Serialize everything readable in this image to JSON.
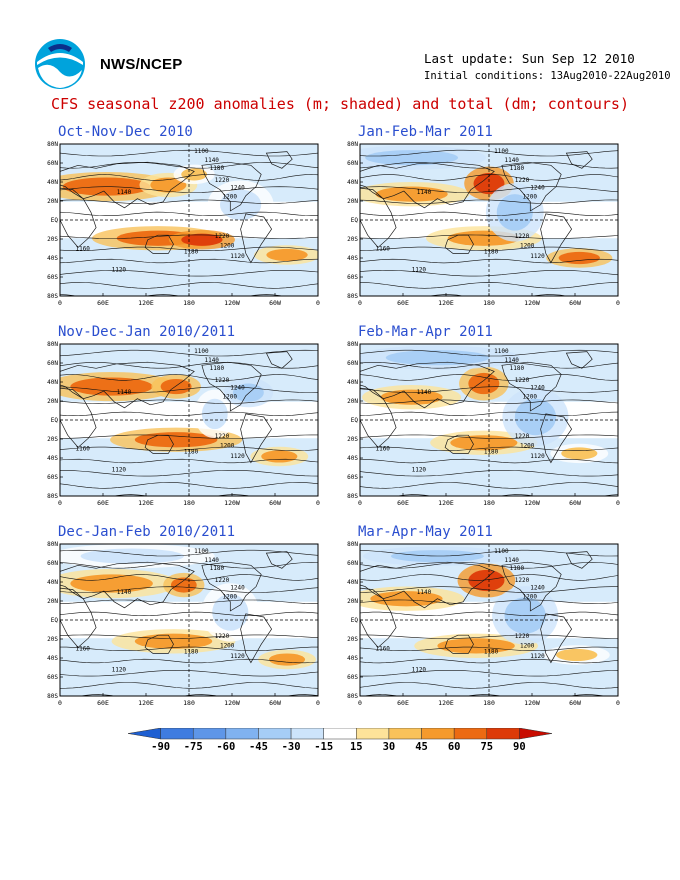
{
  "header": {
    "agency": "NWS/NCEP",
    "last_update": "Last update: Sun Sep 12 2010",
    "initial_conditions": "Initial conditions: 13Aug2010-22Aug2010",
    "title": "CFS seasonal z200 anomalies (m; shaded) and total (dm; contours)"
  },
  "panels": [
    {
      "title": "Oct-Nov-Dec 2010",
      "variant": 0
    },
    {
      "title": "Jan-Feb-Mar 2011",
      "variant": 1
    },
    {
      "title": "Nov-Dec-Jan 2010/2011",
      "variant": 2
    },
    {
      "title": "Feb-Mar-Apr 2011",
      "variant": 3
    },
    {
      "title": "Dec-Jan-Feb 2010/2011",
      "variant": 4
    },
    {
      "title": "Mar-Apr-May 2011",
      "variant": 5
    }
  ],
  "axes": {
    "lat_labels": [
      "80N",
      "60N",
      "40N",
      "20N",
      "EQ",
      "20S",
      "40S",
      "60S",
      "80S"
    ],
    "lon_labels": [
      "0",
      "60E",
      "120E",
      "180",
      "120W",
      "60W",
      "0"
    ]
  },
  "contour_labels": {
    "nh": [
      "1100",
      "1140",
      "1180",
      "1200",
      "1220",
      "1240"
    ],
    "sh": [
      "1240",
      "1220",
      "1200",
      "1180",
      "1160",
      "1140",
      "1120",
      "1100"
    ]
  },
  "colorbar": {
    "labels": [
      "-90",
      "-75",
      "-60",
      "-45",
      "-30",
      "-15",
      "15",
      "30",
      "45",
      "60",
      "75",
      "90"
    ],
    "colors": [
      "#1e5fd2",
      "#3f7ce0",
      "#5e96e8",
      "#80b2f0",
      "#a6cdf6",
      "#cde4fb",
      "#ffffff",
      "#fde39a",
      "#f9c25a",
      "#f59a2c",
      "#ec6a12",
      "#dd3a08",
      "#c80c00"
    ]
  }
}
